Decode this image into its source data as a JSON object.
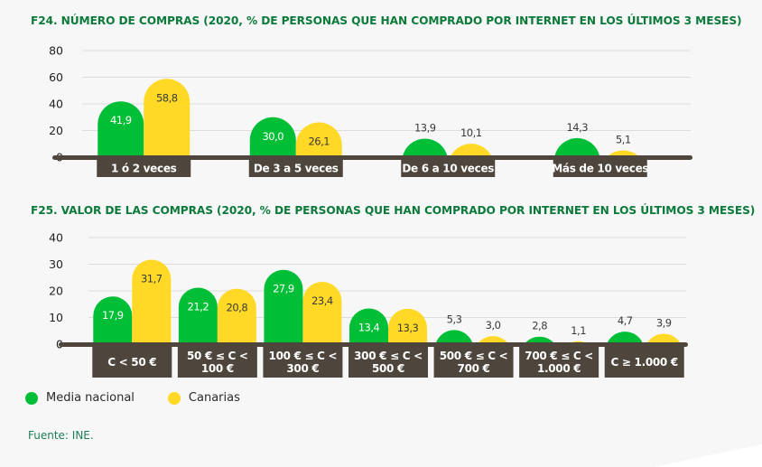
{
  "colors": {
    "national": "#00bf36",
    "canarias": "#ffd926",
    "axis_bar": "#4e463c",
    "title": "#0b7a3a",
    "grid": "#dcdcdc"
  },
  "legend": {
    "items": [
      {
        "label": "Media nacional",
        "color": "#00bf36"
      },
      {
        "label": "Canarias",
        "color": "#ffd926"
      }
    ]
  },
  "source": "Fuente: INE.",
  "chart_data": [
    {
      "type": "bar",
      "title": "F24. NÚMERO DE COMPRAS (2020, % DE PERSONAS QUE HAN COMPRADO POR INTERNET EN LOS ÚLTIMOS 3 MESES)",
      "xlabel": "",
      "ylabel": "",
      "ylim": [
        0,
        80
      ],
      "yticks": [
        0,
        20,
        40,
        60,
        80
      ],
      "grid": true,
      "legend_position": "bottom-left",
      "categories": [
        [
          "1 ó 2 veces"
        ],
        [
          "De 3 a 5 veces"
        ],
        [
          "De 6 a 10 veces"
        ],
        [
          "Más de 10 veces"
        ]
      ],
      "series": [
        {
          "name": "Media nacional",
          "values": [
            41.9,
            30.0,
            13.9,
            14.3
          ],
          "labels": [
            "41,9",
            "30,0",
            "13,9",
            "14,3"
          ]
        },
        {
          "name": "Canarias",
          "values": [
            58.8,
            26.1,
            10.1,
            5.1
          ],
          "labels": [
            "58,8",
            "26,1",
            "10,1",
            "5,1"
          ]
        }
      ]
    },
    {
      "type": "bar",
      "title": "F25. VALOR DE LAS COMPRAS (2020, % DE PERSONAS QUE HAN COMPRADO POR INTERNET EN LOS ÚLTIMOS 3 MESES)",
      "xlabel": "",
      "ylabel": "",
      "ylim": [
        0,
        40
      ],
      "yticks": [
        0,
        10,
        20,
        30,
        40
      ],
      "grid": true,
      "legend_position": "bottom-left",
      "categories": [
        [
          "C < 50 €"
        ],
        [
          "50 € ≤ C <",
          "100 €"
        ],
        [
          "100 € ≤ C <",
          "300 €"
        ],
        [
          "300 € ≤ C <",
          "500 €"
        ],
        [
          "500 € ≤ C <",
          "700 €"
        ],
        [
          "700 € ≤ C <",
          "1.000 €"
        ],
        [
          "C ≥ 1.000 €"
        ]
      ],
      "series": [
        {
          "name": "Media nacional",
          "values": [
            17.9,
            21.2,
            27.9,
            13.4,
            5.3,
            2.8,
            4.7
          ],
          "labels": [
            "17,9",
            "21,2",
            "27,9",
            "13,4",
            "5,3",
            "2,8",
            "4,7"
          ]
        },
        {
          "name": "Canarias",
          "values": [
            31.7,
            20.8,
            23.4,
            13.3,
            3.0,
            1.1,
            3.9
          ],
          "labels": [
            "31,7",
            "20,8",
            "23,4",
            "13,3",
            "3,0",
            "1,1",
            "3,9"
          ]
        }
      ]
    }
  ]
}
